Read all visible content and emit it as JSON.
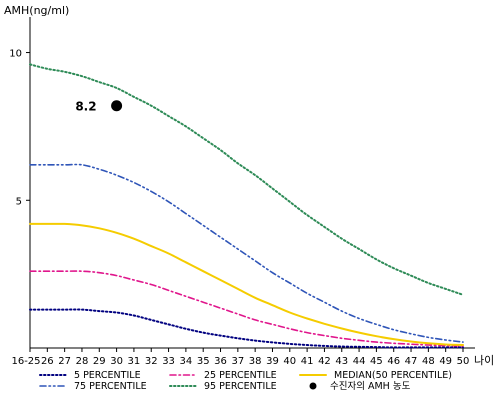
{
  "chart_data": {
    "type": "line",
    "ylabel": "AMH(ng/ml)",
    "xlabel": "나이",
    "x_ticks": [
      "16-25",
      "26",
      "27",
      "28",
      "29",
      "30",
      "31",
      "32",
      "33",
      "34",
      "35",
      "36",
      "37",
      "38",
      "39",
      "40",
      "41",
      "42",
      "43",
      "44",
      "45",
      "46",
      "47",
      "48",
      "49",
      "50"
    ],
    "y_ticks": [
      5,
      10
    ],
    "ylim": [
      0,
      11
    ],
    "series": [
      {
        "name": "5 PERCENTILE",
        "color": "#000080",
        "dash": "dot",
        "values": [
          1.3,
          1.3,
          1.3,
          1.3,
          1.25,
          1.2,
          1.1,
          0.95,
          0.8,
          0.65,
          0.52,
          0.42,
          0.33,
          0.25,
          0.19,
          0.14,
          0.1,
          0.07,
          0.05,
          0.04,
          0.03,
          0.02,
          0.02,
          0.02,
          0.02,
          0.02
        ]
      },
      {
        "name": "25 PERCENTILE",
        "color": "#e0168c",
        "dash": "dashdot",
        "values": [
          2.6,
          2.6,
          2.6,
          2.6,
          2.55,
          2.45,
          2.3,
          2.15,
          1.95,
          1.75,
          1.55,
          1.35,
          1.15,
          0.95,
          0.8,
          0.65,
          0.52,
          0.42,
          0.33,
          0.26,
          0.2,
          0.16,
          0.13,
          0.1,
          0.08,
          0.07
        ]
      },
      {
        "name": "MEDIAN(50 PERCENTILE)",
        "color": "#f5cc00",
        "dash": "solid",
        "values": [
          4.2,
          4.2,
          4.2,
          4.15,
          4.05,
          3.9,
          3.7,
          3.45,
          3.2,
          2.9,
          2.6,
          2.3,
          2.0,
          1.7,
          1.45,
          1.2,
          1.0,
          0.82,
          0.66,
          0.52,
          0.4,
          0.3,
          0.22,
          0.16,
          0.12,
          0.1
        ]
      },
      {
        "name": "75 PERCENTILE",
        "color": "#2f55b8",
        "dash": "dashdotdot",
        "values": [
          6.2,
          6.2,
          6.2,
          6.2,
          6.05,
          5.85,
          5.6,
          5.3,
          4.95,
          4.55,
          4.15,
          3.75,
          3.35,
          2.95,
          2.55,
          2.2,
          1.85,
          1.55,
          1.25,
          1.0,
          0.8,
          0.62,
          0.48,
          0.36,
          0.27,
          0.2
        ]
      },
      {
        "name": "95 PERCENTILE",
        "color": "#2e8b57",
        "dash": "dot",
        "values": [
          9.6,
          9.45,
          9.35,
          9.2,
          9.0,
          8.8,
          8.5,
          8.2,
          7.85,
          7.5,
          7.1,
          6.7,
          6.25,
          5.85,
          5.4,
          4.95,
          4.5,
          4.1,
          3.7,
          3.35,
          3.0,
          2.7,
          2.45,
          2.2,
          2.0,
          1.8
        ]
      }
    ],
    "patient": {
      "name": "수진자의 AMH 농도",
      "x": "30",
      "y": 8.2,
      "label": "8.2"
    }
  }
}
